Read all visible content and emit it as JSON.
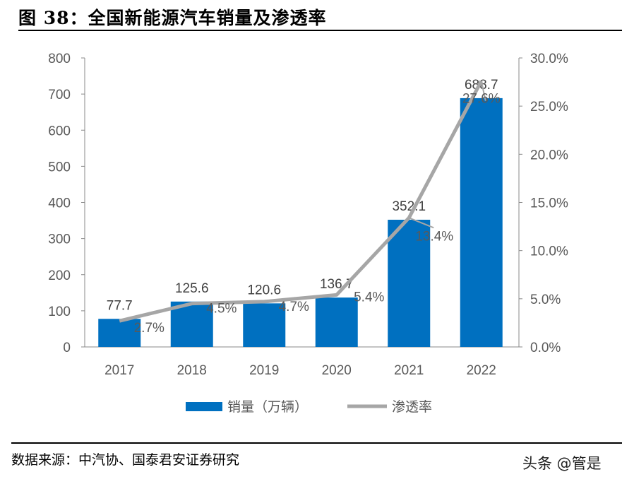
{
  "title": "图 38：全国新能源汽车销量及渗透率",
  "source": "数据来源：中汽协、国泰君安证券研究",
  "watermark": "头条 @管是",
  "chart_data": {
    "type": "bar+line",
    "categories": [
      "2017",
      "2018",
      "2019",
      "2020",
      "2021",
      "2022"
    ],
    "series": [
      {
        "name": "销量（万辆）",
        "type": "bar",
        "axis": "left",
        "color": "#0070C0",
        "values": [
          77.7,
          125.6,
          120.6,
          136.7,
          352.1,
          688.7
        ],
        "labels": [
          "77.7",
          "125.6",
          "120.6",
          "136.7",
          "352.1",
          "688.7"
        ]
      },
      {
        "name": "渗透率",
        "type": "line",
        "axis": "right",
        "color": "#A6A6A6",
        "values": [
          2.7,
          4.5,
          4.7,
          5.4,
          13.4,
          27.6
        ],
        "labels": [
          "2.7%",
          "4.5%",
          "4.7%",
          "5.4%",
          "13.4%",
          "27.6%"
        ]
      }
    ],
    "y_left": {
      "range": [
        0,
        800
      ],
      "ticks": [
        "0",
        "100",
        "200",
        "300",
        "400",
        "500",
        "600",
        "700",
        "800"
      ]
    },
    "y_right": {
      "range": [
        0,
        30
      ],
      "ticks": [
        "0.0%",
        "5.0%",
        "10.0%",
        "15.0%",
        "20.0%",
        "25.0%",
        "30.0%"
      ]
    },
    "grid": false,
    "legend": "bottom"
  }
}
